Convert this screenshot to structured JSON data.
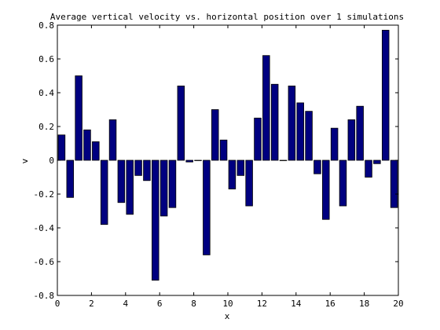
{
  "chart_data": {
    "type": "bar",
    "title": "Average vertical velocity vs. horizontal position over 1 simulations",
    "xlabel": "x",
    "ylabel": "v",
    "xlim": [
      0,
      20
    ],
    "ylim": [
      -0.8,
      0.8
    ],
    "x_ticks": [
      "0",
      "2",
      "4",
      "6",
      "8",
      "10",
      "12",
      "14",
      "16",
      "18",
      "20"
    ],
    "y_ticks": [
      "-0.8",
      "-0.6",
      "-0.4",
      "-0.2",
      "0",
      "0.2",
      "0.4",
      "0.6",
      "0.8"
    ],
    "bar_color": "#000080",
    "grid": false,
    "series": [
      {
        "x": [
          0.25,
          0.75,
          1.25,
          1.75,
          2.25,
          2.75,
          3.25,
          3.75,
          4.25,
          4.75,
          5.25,
          5.75,
          6.25,
          6.75,
          7.25,
          7.75,
          8.25,
          8.75,
          9.25,
          9.75,
          10.25,
          10.75,
          11.25,
          11.75,
          12.25,
          12.75,
          13.25,
          13.75,
          14.25,
          14.75,
          15.25,
          15.75,
          16.25,
          16.75,
          17.25,
          17.75,
          18.25,
          18.75,
          19.25,
          19.75
        ],
        "values": [
          0.15,
          -0.22,
          0.5,
          0.18,
          0.11,
          -0.38,
          0.24,
          -0.25,
          -0.32,
          -0.09,
          -0.12,
          -0.71,
          -0.33,
          -0.28,
          0.44,
          -0.01,
          0.0,
          -0.56,
          0.3,
          0.12,
          -0.17,
          -0.09,
          -0.27,
          0.25,
          0.62,
          0.45,
          0.0,
          0.44,
          0.34,
          0.29,
          -0.08,
          -0.35,
          0.19,
          -0.27,
          0.24,
          0.32,
          -0.1,
          -0.02,
          0.77,
          -0.28
        ]
      }
    ]
  }
}
